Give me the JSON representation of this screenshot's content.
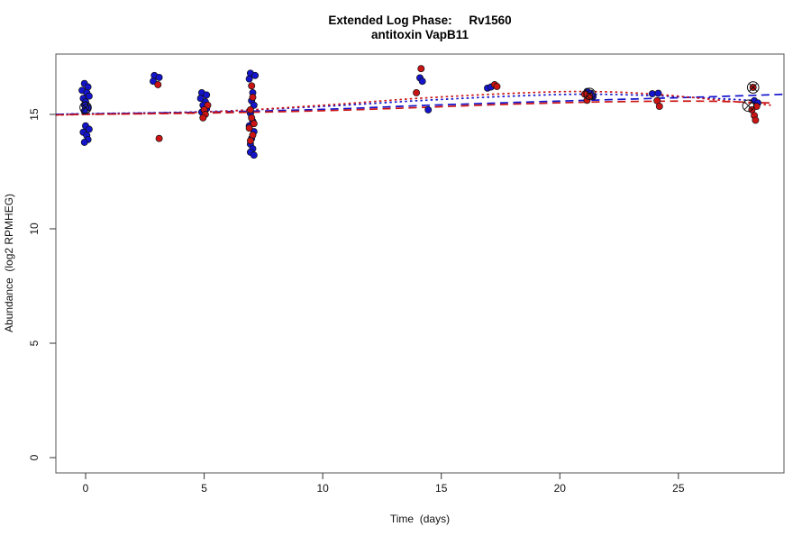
{
  "figure": {
    "title_line1": "Extended Log Phase:     Rv1560",
    "title_line2": "antitoxin VapB11",
    "xlabel": "Time  (days)",
    "ylabel": "Abundance  (log2 RPMHEG)"
  },
  "chart_data": {
    "type": "scatter",
    "title": "Extended Log Phase: Rv1560 — antitoxin VapB11",
    "xlabel": "Time (days)",
    "ylabel": "Abundance (log2 RPMHEG)",
    "xlim": [
      -1.25,
      29.55
    ],
    "ylim": [
      -0.67,
      17.64
    ],
    "x_ticks": [
      0,
      5,
      10,
      15,
      20,
      25
    ],
    "y_ticks": [
      0,
      5,
      10,
      15
    ],
    "grid": false,
    "legend": "none",
    "colors": {
      "blue_series": "#1414CC",
      "red_series": "#CC1414",
      "marker_outline": "#111111",
      "box": "#555555"
    },
    "series": [
      {
        "name": "blue",
        "color": "#1414CC",
        "points": [
          [
            -0.05,
            16.35
          ],
          [
            0.1,
            16.2
          ],
          [
            -0.15,
            16.05
          ],
          [
            0.05,
            15.95
          ],
          [
            0.15,
            15.8
          ],
          [
            -0.1,
            15.7
          ],
          [
            0.0,
            15.55
          ],
          [
            -0.05,
            15.42
          ],
          [
            0.1,
            15.3
          ],
          [
            0.0,
            15.3
          ],
          [
            -0.05,
            15.15
          ],
          [
            0.0,
            14.5
          ],
          [
            0.15,
            14.35
          ],
          [
            -0.1,
            14.22
          ],
          [
            0.05,
            14.08
          ],
          [
            0.1,
            13.9
          ],
          [
            -0.05,
            13.78
          ],
          [
            2.9,
            16.7
          ],
          [
            3.1,
            16.62
          ],
          [
            2.85,
            16.45
          ],
          [
            4.9,
            15.95
          ],
          [
            5.1,
            15.85
          ],
          [
            4.85,
            15.7
          ],
          [
            5.05,
            15.55
          ],
          [
            4.95,
            15.4
          ],
          [
            5.1,
            15.25
          ],
          [
            4.9,
            15.1
          ],
          [
            6.95,
            16.8
          ],
          [
            7.15,
            16.7
          ],
          [
            6.9,
            16.55
          ],
          [
            7.05,
            15.95
          ],
          [
            7.0,
            15.6
          ],
          [
            7.1,
            15.4
          ],
          [
            6.95,
            15.05
          ],
          [
            7.05,
            14.7
          ],
          [
            6.9,
            14.5
          ],
          [
            7.1,
            14.25
          ],
          [
            7.0,
            13.95
          ],
          [
            6.95,
            13.7
          ],
          [
            7.05,
            13.5
          ],
          [
            6.95,
            13.35
          ],
          [
            7.1,
            13.22
          ],
          [
            14.1,
            16.6
          ],
          [
            14.2,
            16.45
          ],
          [
            14.45,
            15.2
          ],
          [
            16.95,
            16.15
          ],
          [
            17.1,
            16.2
          ],
          [
            21.15,
            16.0
          ],
          [
            21.3,
            15.92
          ],
          [
            21.4,
            15.78
          ],
          [
            23.9,
            15.9
          ],
          [
            24.15,
            15.92
          ],
          [
            28.2,
            15.6
          ],
          [
            28.35,
            15.5
          ]
        ]
      },
      {
        "name": "red",
        "color": "#CC1414",
        "points": [
          [
            3.05,
            16.3
          ],
          [
            3.1,
            13.95
          ],
          [
            5.15,
            15.4
          ],
          [
            5.0,
            15.2
          ],
          [
            5.05,
            15.0
          ],
          [
            4.95,
            14.85
          ],
          [
            7.0,
            16.25
          ],
          [
            7.05,
            15.75
          ],
          [
            6.95,
            15.2
          ],
          [
            7.0,
            14.85
          ],
          [
            7.1,
            14.6
          ],
          [
            6.9,
            14.4
          ],
          [
            7.05,
            14.1
          ],
          [
            6.95,
            13.85
          ],
          [
            14.15,
            17.0
          ],
          [
            13.95,
            15.95
          ],
          [
            17.25,
            16.3
          ],
          [
            17.35,
            16.22
          ],
          [
            21.05,
            15.88
          ],
          [
            21.25,
            15.8
          ],
          [
            21.15,
            15.62
          ],
          [
            24.1,
            15.6
          ],
          [
            24.2,
            15.35
          ],
          [
            28.15,
            16.18
          ],
          [
            28.3,
            15.35
          ],
          [
            28.1,
            15.2
          ],
          [
            28.2,
            14.95
          ],
          [
            28.25,
            14.75
          ]
        ]
      }
    ],
    "circled_outliers": [
      [
        0.0,
        15.3
      ],
      [
        21.25,
        15.9
      ],
      [
        28.15,
        16.18
      ],
      [
        27.95,
        15.38
      ]
    ],
    "trend_lines": [
      {
        "name": "dashed-blue",
        "color": "#1414CC",
        "style": "dashed",
        "points": [
          [
            -1.25,
            15.0
          ],
          [
            0,
            15.02
          ],
          [
            5,
            15.1
          ],
          [
            10,
            15.22
          ],
          [
            14,
            15.38
          ],
          [
            18,
            15.52
          ],
          [
            22,
            15.64
          ],
          [
            26,
            15.76
          ],
          [
            29.5,
            15.88
          ]
        ]
      },
      {
        "name": "dashed-red",
        "color": "#CC1414",
        "style": "dashed",
        "points": [
          [
            -1.25,
            14.98
          ],
          [
            0,
            15.0
          ],
          [
            5,
            15.06
          ],
          [
            10,
            15.16
          ],
          [
            14,
            15.3
          ],
          [
            18,
            15.45
          ],
          [
            22,
            15.55
          ],
          [
            26,
            15.58
          ],
          [
            28.9,
            15.5
          ]
        ]
      },
      {
        "name": "dotted-blue",
        "color": "#1414CC",
        "style": "dotted",
        "points": [
          [
            -1.25,
            15.0
          ],
          [
            0,
            15.03
          ],
          [
            5,
            15.12
          ],
          [
            10,
            15.35
          ],
          [
            14,
            15.6
          ],
          [
            18,
            15.8
          ],
          [
            21,
            15.88
          ],
          [
            24,
            15.82
          ],
          [
            28.4,
            15.6
          ]
        ]
      },
      {
        "name": "dotted-red",
        "color": "#CC1414",
        "style": "dotted",
        "points": [
          [
            -1.25,
            14.97
          ],
          [
            0,
            15.0
          ],
          [
            5,
            15.1
          ],
          [
            10,
            15.4
          ],
          [
            14,
            15.7
          ],
          [
            18,
            15.92
          ],
          [
            21,
            16.0
          ],
          [
            24,
            15.88
          ],
          [
            28.9,
            15.4
          ]
        ]
      }
    ]
  }
}
